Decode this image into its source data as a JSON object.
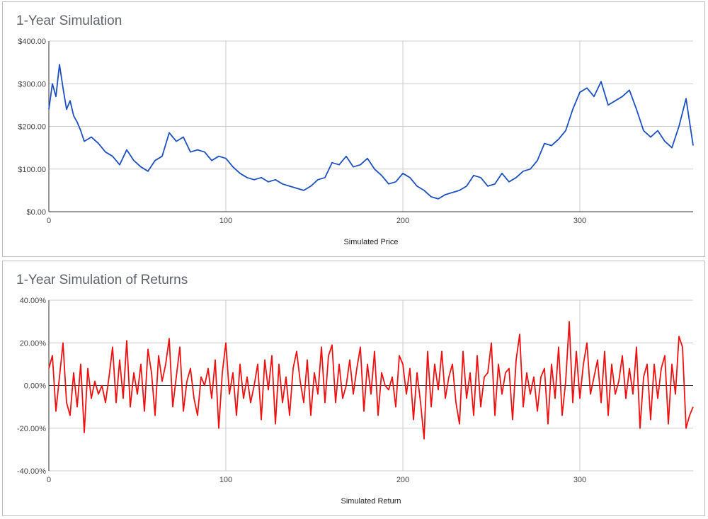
{
  "chart_data": [
    {
      "type": "line",
      "title": "1-Year Simulation",
      "xlabel": "Simulated Price",
      "ylabel": "",
      "xlim": [
        0,
        364
      ],
      "ylim": [
        0,
        400
      ],
      "x_ticks": [
        "0",
        "100",
        "200",
        "300"
      ],
      "y_ticks": [
        "$0.00",
        "$100.00",
        "$200.00",
        "$300.00",
        "$400.00"
      ],
      "grid": true,
      "legend": "none",
      "color": "#1d4fbf",
      "series": [
        {
          "x": [
            0,
            2,
            4,
            6,
            8,
            10,
            12,
            14,
            16,
            18,
            20,
            24,
            28,
            32,
            36,
            40,
            44,
            48,
            52,
            56,
            60,
            64,
            68,
            72,
            76,
            80,
            84,
            88,
            92,
            96,
            100,
            104,
            108,
            112,
            116,
            120,
            124,
            128,
            132,
            136,
            140,
            144,
            148,
            152,
            156,
            160,
            164,
            168,
            172,
            176,
            180,
            184,
            188,
            192,
            196,
            200,
            204,
            208,
            212,
            216,
            220,
            224,
            228,
            232,
            236,
            240,
            244,
            248,
            252,
            256,
            260,
            264,
            268,
            272,
            276,
            280,
            284,
            288,
            292,
            296,
            300,
            304,
            308,
            312,
            316,
            320,
            324,
            328,
            332,
            336,
            340,
            344,
            348,
            352,
            356,
            360,
            364
          ],
          "values": [
            240,
            300,
            270,
            345,
            290,
            240,
            260,
            225,
            210,
            190,
            165,
            175,
            160,
            140,
            130,
            110,
            145,
            120,
            105,
            95,
            120,
            130,
            185,
            165,
            175,
            140,
            145,
            140,
            120,
            130,
            125,
            105,
            90,
            80,
            75,
            80,
            70,
            75,
            65,
            60,
            55,
            50,
            60,
            75,
            80,
            115,
            110,
            130,
            105,
            110,
            125,
            100,
            85,
            65,
            70,
            90,
            80,
            60,
            50,
            35,
            30,
            40,
            45,
            50,
            60,
            85,
            80,
            60,
            65,
            90,
            70,
            80,
            95,
            100,
            120,
            160,
            155,
            170,
            190,
            240,
            280,
            290,
            270,
            305,
            250,
            260,
            270,
            285,
            240,
            190,
            175,
            190,
            165,
            150,
            200,
            265,
            155
          ]
        }
      ]
    },
    {
      "type": "line",
      "title": "1-Year Simulation of Returns",
      "xlabel": "Simulated Return",
      "ylabel": "",
      "xlim": [
        0,
        364
      ],
      "ylim": [
        -40,
        40
      ],
      "x_ticks": [
        "0",
        "100",
        "200",
        "300"
      ],
      "y_ticks": [
        "-40.00%",
        "-20.00%",
        "0.00%",
        "20.00%",
        "40.00%"
      ],
      "grid": true,
      "legend": "none",
      "color": "#ee1111",
      "series": [
        {
          "x": [
            0,
            2,
            4,
            6,
            8,
            10,
            12,
            14,
            16,
            18,
            20,
            22,
            24,
            26,
            28,
            30,
            32,
            34,
            36,
            38,
            40,
            42,
            44,
            46,
            48,
            50,
            52,
            54,
            56,
            58,
            60,
            62,
            64,
            66,
            68,
            70,
            72,
            74,
            76,
            78,
            80,
            82,
            84,
            86,
            88,
            90,
            92,
            94,
            96,
            98,
            100,
            102,
            104,
            106,
            108,
            110,
            112,
            114,
            116,
            118,
            120,
            122,
            124,
            126,
            128,
            130,
            132,
            134,
            136,
            138,
            140,
            142,
            144,
            146,
            148,
            150,
            152,
            154,
            156,
            158,
            160,
            162,
            164,
            166,
            168,
            170,
            172,
            174,
            176,
            178,
            180,
            182,
            184,
            186,
            188,
            190,
            192,
            194,
            196,
            198,
            200,
            202,
            204,
            206,
            208,
            210,
            212,
            214,
            216,
            218,
            220,
            222,
            224,
            226,
            228,
            230,
            232,
            234,
            236,
            238,
            240,
            242,
            244,
            246,
            248,
            250,
            252,
            254,
            256,
            258,
            260,
            262,
            264,
            266,
            268,
            270,
            272,
            274,
            276,
            278,
            280,
            282,
            284,
            286,
            288,
            290,
            292,
            294,
            296,
            298,
            300,
            302,
            304,
            306,
            308,
            310,
            312,
            314,
            316,
            318,
            320,
            322,
            324,
            326,
            328,
            330,
            332,
            334,
            336,
            338,
            340,
            342,
            344,
            346,
            348,
            350,
            352,
            354,
            356,
            358,
            360,
            362,
            364
          ],
          "values": [
            8,
            14,
            -12,
            4,
            20,
            -8,
            -14,
            6,
            -10,
            10,
            -22,
            8,
            -6,
            2,
            -4,
            0,
            -8,
            4,
            18,
            -8,
            12,
            -6,
            21,
            -10,
            6,
            -4,
            10,
            -12,
            17,
            6,
            -14,
            14,
            2,
            10,
            22,
            -10,
            4,
            18,
            -12,
            2,
            8,
            -6,
            -14,
            4,
            0,
            8,
            -6,
            12,
            -20,
            6,
            20,
            -4,
            6,
            -14,
            10,
            -6,
            4,
            -8,
            0,
            10,
            -16,
            12,
            -2,
            14,
            -18,
            10,
            -8,
            4,
            -14,
            8,
            16,
            2,
            -8,
            12,
            -14,
            6,
            -4,
            18,
            -8,
            14,
            19,
            -8,
            10,
            -6,
            0,
            12,
            -4,
            8,
            18,
            -12,
            10,
            -4,
            16,
            -14,
            6,
            0,
            -2,
            4,
            -10,
            14,
            10,
            -4,
            8,
            -16,
            6,
            -8,
            -25,
            16,
            -10,
            10,
            -2,
            16,
            -6,
            4,
            10,
            -8,
            -18,
            16,
            -6,
            6,
            -14,
            14,
            -10,
            4,
            6,
            20,
            -14,
            10,
            -4,
            6,
            8,
            -16,
            12,
            24,
            -10,
            6,
            -4,
            4,
            -12,
            4,
            8,
            -18,
            10,
            -6,
            18,
            -14,
            2,
            30,
            -8,
            16,
            -6,
            10,
            20,
            -4,
            4,
            12,
            -8,
            16,
            -14,
            10,
            -4,
            2,
            14,
            -6,
            8,
            -4,
            18,
            -20,
            4,
            10,
            -16,
            10,
            -6,
            8,
            14,
            -18,
            10,
            -4,
            23,
            18,
            -20,
            -14,
            -10
          ]
        }
      ]
    }
  ]
}
